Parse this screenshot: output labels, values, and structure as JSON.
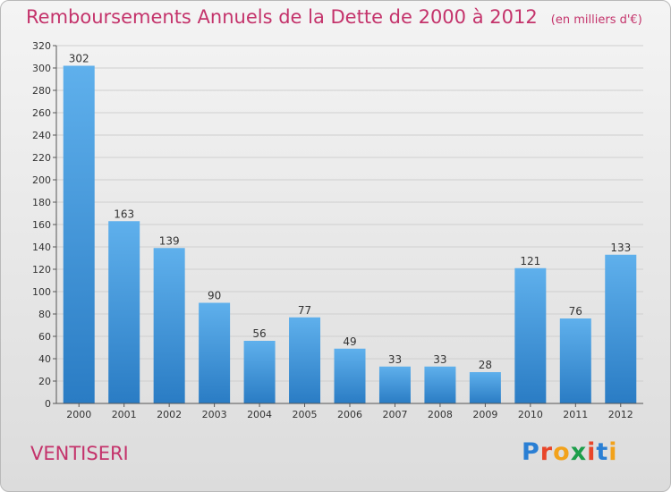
{
  "chart_data": {
    "type": "bar",
    "title": "Remboursements Annuels de la Dette de 2000 à 2012",
    "subtitle": "(en milliers d'€)",
    "xlabel": "",
    "ylabel": "",
    "categories": [
      "2000",
      "2001",
      "2002",
      "2003",
      "2004",
      "2005",
      "2006",
      "2007",
      "2008",
      "2009",
      "2010",
      "2011",
      "2012"
    ],
    "values": [
      302,
      163,
      139,
      90,
      56,
      77,
      49,
      33,
      33,
      28,
      121,
      76,
      133
    ],
    "ylim": [
      0,
      320
    ],
    "yticks": [
      0,
      20,
      40,
      60,
      80,
      100,
      120,
      140,
      160,
      180,
      200,
      220,
      240,
      260,
      280,
      300,
      320
    ],
    "grid": true,
    "bar_color": "#3a8fd6"
  },
  "footer": {
    "commune": "VENTISERI",
    "logo_letters": [
      "P",
      "r",
      "o",
      "x",
      "i",
      "t",
      "i"
    ],
    "logo_colors": [
      "#2a7fd4",
      "#e8462a",
      "#f2a21b",
      "#1c9e4a",
      "#e8462a",
      "#2a7fd4",
      "#f2a21b"
    ]
  }
}
